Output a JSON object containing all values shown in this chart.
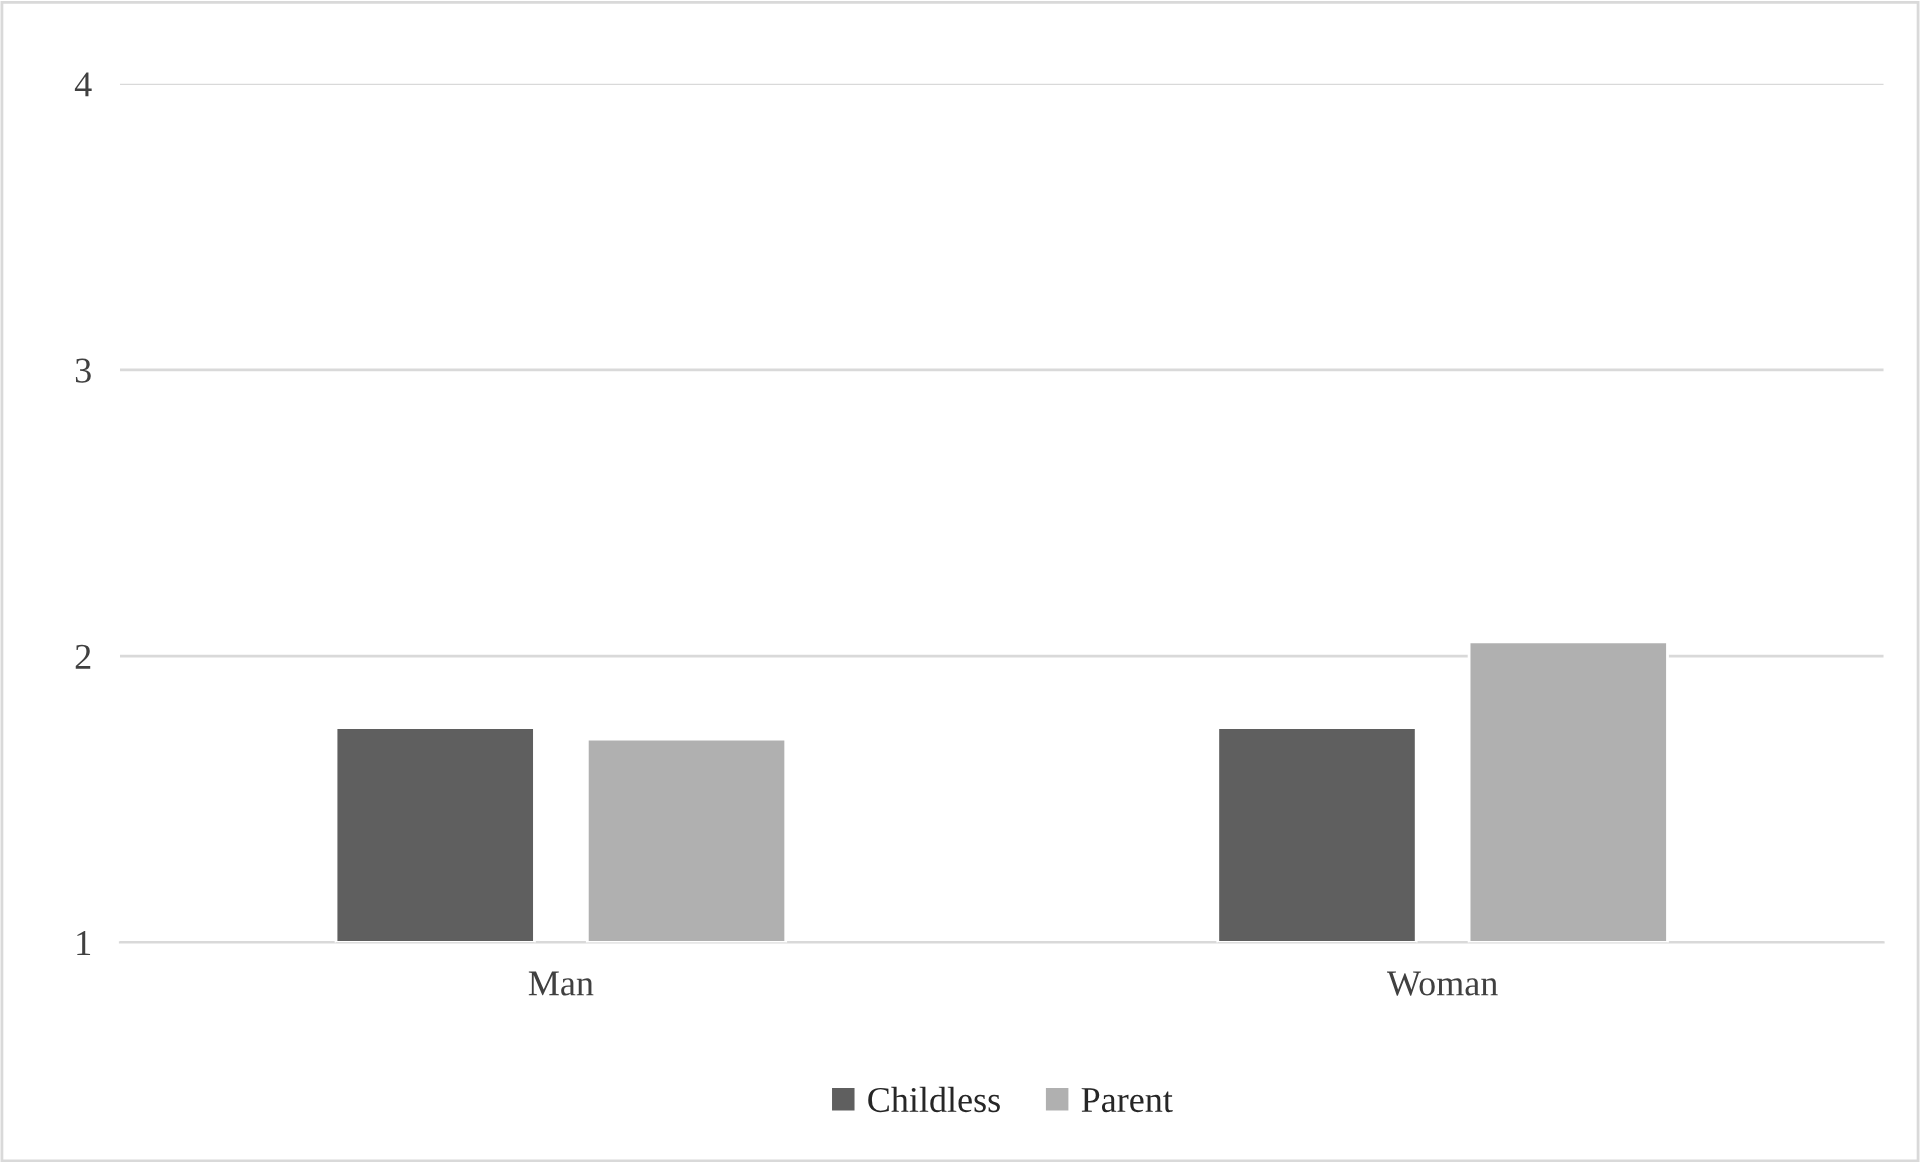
{
  "chart_data": {
    "type": "bar",
    "categories": [
      "Man",
      "Woman"
    ],
    "series": [
      {
        "name": "Childless",
        "color": "#5f5f5f",
        "values": [
          1.75,
          1.75
        ]
      },
      {
        "name": "Parent",
        "color": "#b0b0b0",
        "values": [
          1.71,
          2.05
        ]
      }
    ],
    "ylim": [
      1,
      4
    ],
    "yticks": [
      1,
      2,
      3,
      4
    ],
    "grid": "y",
    "legend": "bottom"
  }
}
